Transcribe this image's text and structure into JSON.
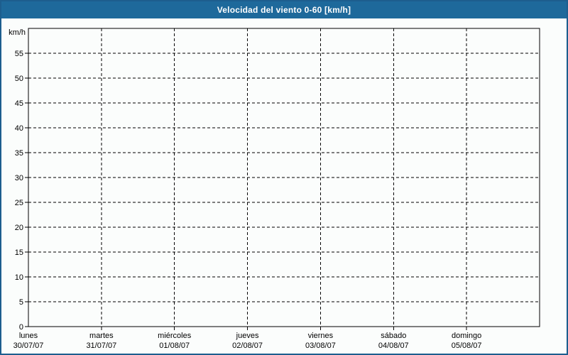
{
  "window": {
    "title": "Velocidad del viento 0-60 [km/h]"
  },
  "colors": {
    "titlebar_bg": "#1e699b",
    "titlebar_text": "#ffffff",
    "window_border": "#1d5e8e",
    "plot_bg": "#fbfdfc",
    "axis": "#000000",
    "grid": "#000000",
    "label": "#000000"
  },
  "chart_data": {
    "type": "line",
    "title": "Velocidad del viento 0-60 [km/h]",
    "y_unit_label": "km/h",
    "ylim": [
      0,
      60
    ],
    "y_ticks": [
      0,
      5,
      10,
      15,
      20,
      25,
      30,
      35,
      40,
      45,
      50,
      55
    ],
    "x_categories": [
      {
        "day": "lunes",
        "date": "30/07/07"
      },
      {
        "day": "martes",
        "date": "31/07/07"
      },
      {
        "day": "miércoles",
        "date": "01/08/07"
      },
      {
        "day": "jueves",
        "date": "02/08/07"
      },
      {
        "day": "viernes",
        "date": "03/08/07"
      },
      {
        "day": "sábado",
        "date": "04/08/07"
      },
      {
        "day": "domingo",
        "date": "05/08/07"
      }
    ],
    "grid": "dashed",
    "legend": "none",
    "series": []
  }
}
